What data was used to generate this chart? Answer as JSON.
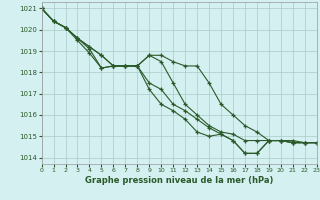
{
  "title": "Graphe pression niveau de la mer (hPa)",
  "background_color": "#d4f0f0",
  "grid_color": "#aacccc",
  "line_color": "#2a5a2a",
  "xlim": [
    0,
    23
  ],
  "ylim": [
    1013.7,
    1021.3
  ],
  "yticks": [
    1014,
    1015,
    1016,
    1017,
    1018,
    1019,
    1020,
    1021
  ],
  "xticks": [
    0,
    1,
    2,
    3,
    4,
    5,
    6,
    7,
    8,
    9,
    10,
    11,
    12,
    13,
    14,
    15,
    16,
    17,
    18,
    19,
    20,
    21,
    22,
    23
  ],
  "series": [
    [
      1021.0,
      1020.4,
      1020.1,
      1019.6,
      1019.2,
      1018.8,
      1018.3,
      1018.3,
      1018.3,
      1018.8,
      1018.8,
      1018.5,
      1018.3,
      1018.3,
      1017.5,
      1016.5,
      1016.0,
      1015.5,
      1015.2,
      1014.8,
      1014.8,
      1014.8,
      1014.7,
      1014.7
    ],
    [
      1021.0,
      1020.4,
      1020.1,
      1019.6,
      1019.2,
      1018.8,
      1018.3,
      1018.3,
      1018.3,
      1018.8,
      1018.5,
      1017.5,
      1016.5,
      1016.0,
      1015.5,
      1015.2,
      1015.1,
      1014.8,
      1014.8,
      1014.8,
      1014.8,
      1014.7,
      1014.7,
      1014.7
    ],
    [
      1021.0,
      1020.4,
      1020.1,
      1019.6,
      1019.1,
      1018.2,
      1018.3,
      1018.3,
      1018.3,
      1017.5,
      1017.2,
      1016.5,
      1016.2,
      1015.8,
      1015.4,
      1015.1,
      1014.8,
      1014.2,
      1014.2,
      1014.8,
      1014.8,
      1014.7,
      1014.7,
      1014.7
    ],
    [
      1021.0,
      1020.4,
      1020.1,
      1019.5,
      1018.9,
      1018.2,
      1018.3,
      1018.3,
      1018.3,
      1017.2,
      1016.5,
      1016.2,
      1015.8,
      1015.2,
      1015.0,
      1015.1,
      1014.8,
      1014.2,
      1014.2,
      1014.8,
      1014.8,
      1014.7,
      1014.7,
      1014.7
    ]
  ]
}
